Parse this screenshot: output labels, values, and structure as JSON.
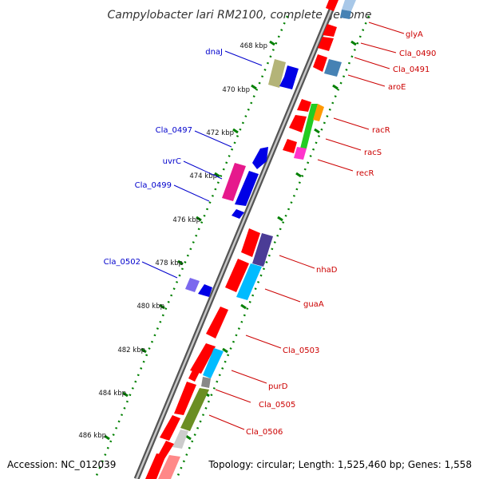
{
  "title": "Campylobacter lari RM2100, complete genome",
  "footer": {
    "accession": "Accession: NC_012039",
    "stats": "Topology: circular; Length: 1,525,460 bp; Genes: 1,558"
  },
  "ticks": [
    "468 kbp",
    "470 kbp",
    "472 kbp",
    "474 kbp",
    "476 kbp",
    "478 kbp",
    "480 kbp",
    "482 kbp",
    "484 kbp",
    "486 kbp"
  ],
  "labels_left": [
    "dnaJ",
    "Cla_0497",
    "uvrC",
    "Cla_0499",
    "Cla_0502"
  ],
  "labels_right": [
    "glyA",
    "Cla_0490",
    "Cla_0491",
    "aroE",
    "racR",
    "racS",
    "recR",
    "nhaD",
    "guaA",
    "Cla_0503",
    "purD",
    "Cla_0505",
    "Cla_0506"
  ],
  "colors": {
    "red": "#ff0000",
    "blue": "#0000e6",
    "magenta": "#e6198c",
    "olive": "#b4b478",
    "steelblue": "#4682b4",
    "green": "#22cc22",
    "orange": "#ff9900",
    "pink": "#ff33cc",
    "purple": "#4b3c96",
    "cyan": "#00aaff",
    "darkgreen": "#6b8e23",
    "lightgray": "#cccccc",
    "lilac": "#7b68ee",
    "backbone": "#808080",
    "tick_green": "#008000"
  }
}
